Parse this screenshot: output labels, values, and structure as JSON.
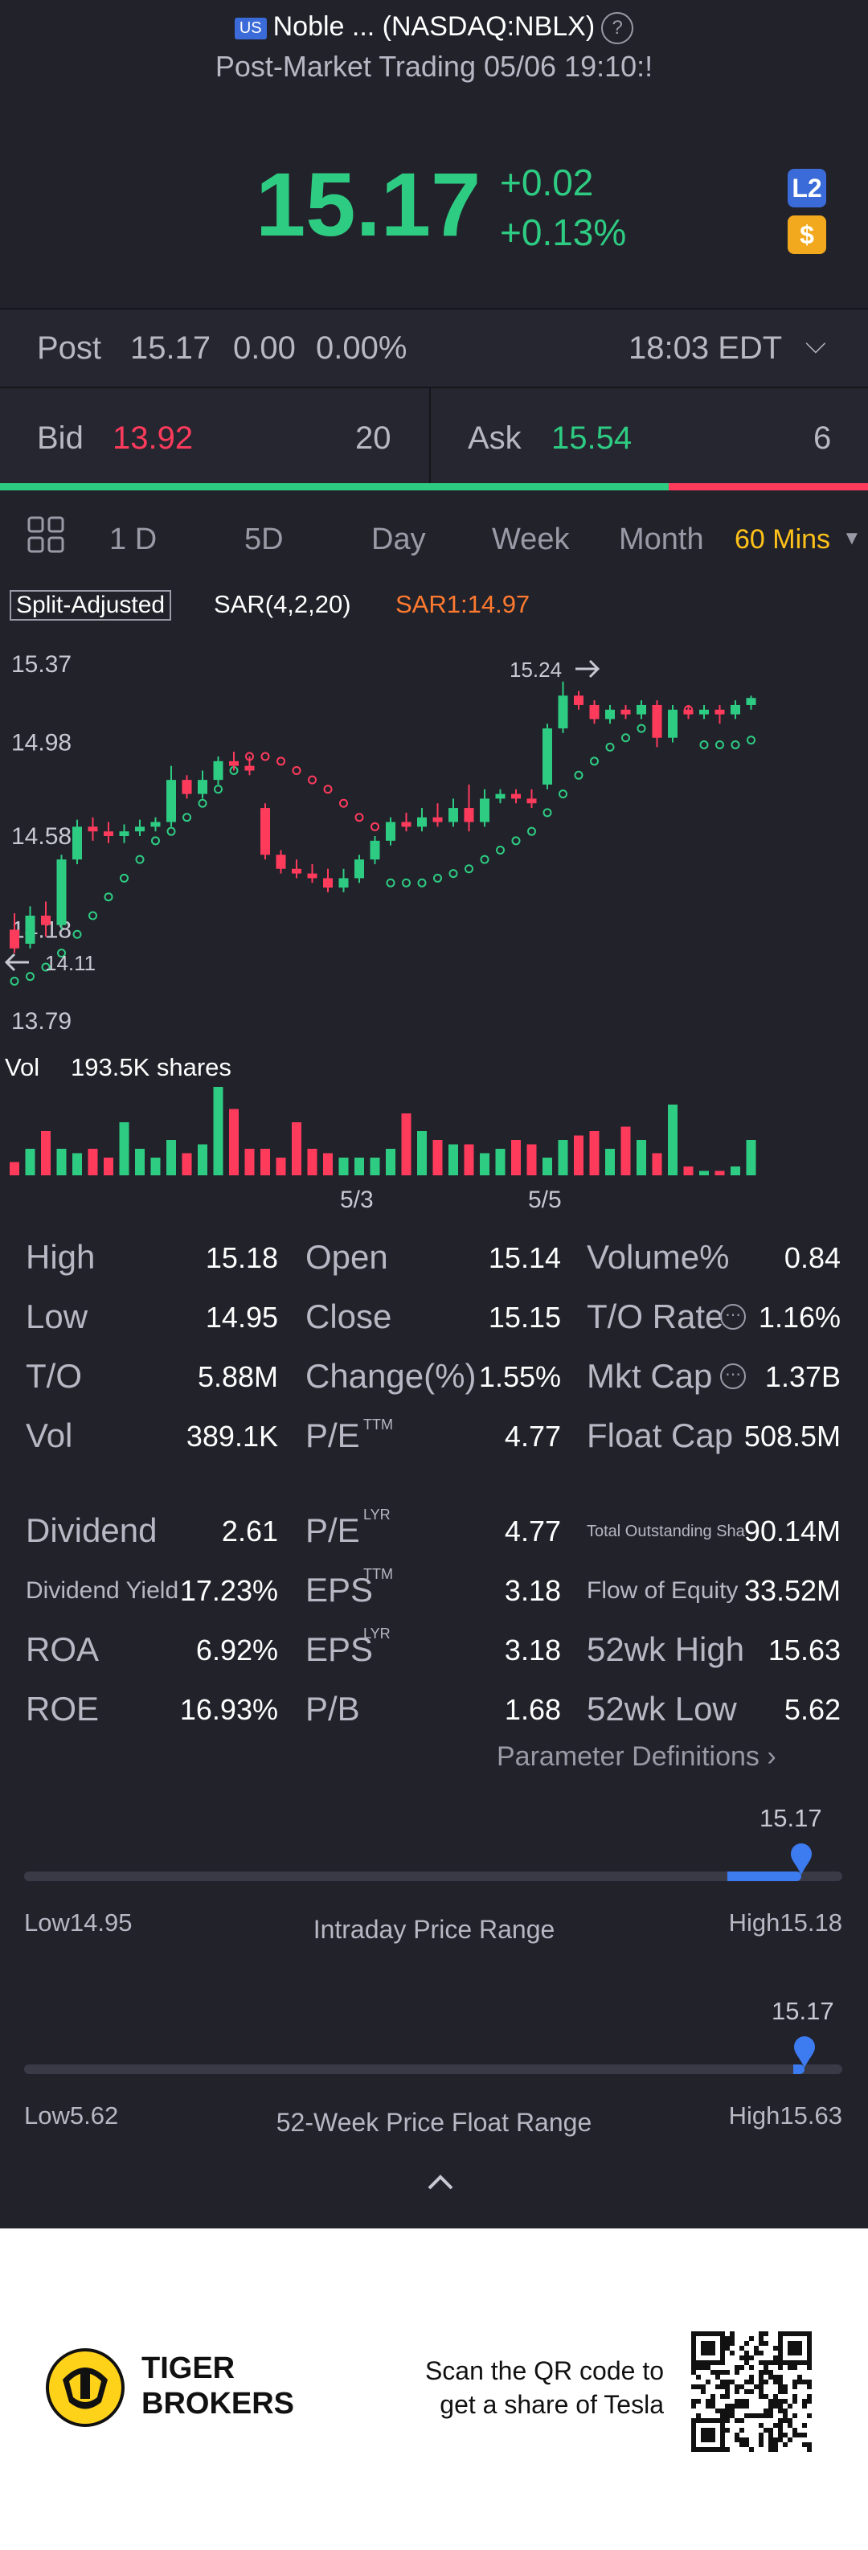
{
  "header": {
    "market_flag": "US",
    "title": "Noble ... (NASDAQ:NBLX)",
    "subtitle": "Post-Market Trading 05/06 19:10:!",
    "price": "15.17",
    "change": "+0.02",
    "change_pct": "+0.13%",
    "badge_l2": "L2",
    "badge_dollar": "$"
  },
  "post": {
    "label": "Post",
    "price": "15.17",
    "change": "0.00",
    "pct": "0.00%",
    "time": "18:03 EDT"
  },
  "bidask": {
    "bid_label": "Bid",
    "bid_price": "13.92",
    "bid_size": "20",
    "ask_label": "Ask",
    "ask_price": "15.54",
    "ask_size": "6",
    "bid_ratio": 0.77
  },
  "tabs": [
    "1 D",
    "5D",
    "Day",
    "Week",
    "Month",
    "60 Mins"
  ],
  "chart": {
    "split_label": "Split-Adjusted",
    "indicator": "SAR(4,2,20)",
    "sar_value": "SAR1:14.97",
    "y_labels": [
      "15.37",
      "14.98",
      "14.58",
      "14.18",
      "13.79"
    ],
    "high_marker": "15.24",
    "low_marker": "14.11",
    "vol_label": "Vol",
    "vol_value": "193.5K shares",
    "x_labels": [
      "5/3",
      "5/5"
    ]
  },
  "chart_data": {
    "type": "candlestick",
    "ylim": [
      13.79,
      15.37
    ],
    "candles": [
      [
        14.18,
        14.1,
        14.25,
        14.08
      ],
      [
        14.12,
        14.24,
        14.28,
        14.1
      ],
      [
        14.24,
        14.2,
        14.3,
        14.15
      ],
      [
        14.2,
        14.48,
        14.5,
        14.18
      ],
      [
        14.48,
        14.62,
        14.65,
        14.46
      ],
      [
        14.62,
        14.6,
        14.66,
        14.56
      ],
      [
        14.6,
        14.58,
        14.64,
        14.55
      ],
      [
        14.58,
        14.6,
        14.63,
        14.55
      ],
      [
        14.6,
        14.62,
        14.65,
        14.58
      ],
      [
        14.62,
        14.64,
        14.66,
        14.6
      ],
      [
        14.64,
        14.82,
        14.88,
        14.62
      ],
      [
        14.82,
        14.76,
        14.84,
        14.74
      ],
      [
        14.76,
        14.82,
        14.86,
        14.74
      ],
      [
        14.82,
        14.9,
        14.92,
        14.8
      ],
      [
        14.9,
        14.88,
        14.94,
        14.86
      ],
      [
        14.88,
        14.86,
        14.92,
        14.84
      ],
      [
        14.7,
        14.5,
        14.72,
        14.48
      ],
      [
        14.5,
        14.44,
        14.52,
        14.42
      ],
      [
        14.44,
        14.42,
        14.48,
        14.4
      ],
      [
        14.42,
        14.4,
        14.46,
        14.38
      ],
      [
        14.4,
        14.36,
        14.44,
        14.34
      ],
      [
        14.36,
        14.4,
        14.44,
        14.34
      ],
      [
        14.4,
        14.48,
        14.5,
        14.38
      ],
      [
        14.48,
        14.56,
        14.58,
        14.46
      ],
      [
        14.56,
        14.64,
        14.66,
        14.54
      ],
      [
        14.64,
        14.62,
        14.68,
        14.6
      ],
      [
        14.62,
        14.66,
        14.7,
        14.6
      ],
      [
        14.66,
        14.64,
        14.72,
        14.62
      ],
      [
        14.64,
        14.7,
        14.74,
        14.62
      ],
      [
        14.7,
        14.64,
        14.8,
        14.6
      ],
      [
        14.64,
        14.74,
        14.78,
        14.62
      ],
      [
        14.74,
        14.76,
        14.78,
        14.72
      ],
      [
        14.76,
        14.74,
        14.78,
        14.72
      ],
      [
        14.74,
        14.72,
        14.78,
        14.7
      ],
      [
        14.8,
        15.04,
        15.06,
        14.78
      ],
      [
        15.04,
        15.18,
        15.24,
        15.02
      ],
      [
        15.18,
        15.14,
        15.2,
        15.12
      ],
      [
        15.14,
        15.08,
        15.16,
        15.06
      ],
      [
        15.08,
        15.12,
        15.14,
        15.06
      ],
      [
        15.12,
        15.1,
        15.14,
        15.08
      ],
      [
        15.1,
        15.14,
        15.16,
        15.08
      ],
      [
        15.14,
        15.0,
        15.16,
        14.96
      ],
      [
        15.0,
        15.12,
        15.14,
        14.98
      ],
      [
        15.12,
        15.1,
        15.14,
        15.08
      ],
      [
        15.1,
        15.12,
        15.14,
        15.08
      ],
      [
        15.12,
        15.1,
        15.14,
        15.06
      ],
      [
        15.1,
        15.14,
        15.16,
        15.08
      ],
      [
        15.14,
        15.17,
        15.18,
        15.12
      ]
    ],
    "volumes": [
      0.15,
      0.3,
      0.5,
      0.3,
      0.25,
      0.3,
      0.2,
      0.6,
      0.3,
      0.2,
      0.4,
      0.25,
      0.35,
      1.0,
      0.75,
      0.3,
      0.3,
      0.2,
      0.6,
      0.3,
      0.25,
      0.2,
      0.2,
      0.2,
      0.3,
      0.7,
      0.5,
      0.4,
      0.35,
      0.35,
      0.25,
      0.3,
      0.4,
      0.35,
      0.2,
      0.4,
      0.45,
      0.5,
      0.3,
      0.55,
      0.4,
      0.25,
      0.8,
      0.1,
      0.05,
      0.05,
      0.1,
      0.4
    ],
    "sar": [
      13.96,
      13.98,
      14.02,
      14.08,
      14.16,
      14.24,
      14.32,
      14.4,
      14.48,
      14.56,
      14.6,
      14.66,
      14.72,
      14.78,
      14.86,
      14.92,
      14.92,
      14.9,
      14.86,
      14.82,
      14.78,
      14.72,
      14.66,
      14.62,
      14.38,
      14.38,
      14.38,
      14.4,
      14.42,
      14.44,
      14.48,
      14.52,
      14.56,
      14.6,
      14.68,
      14.76,
      14.84,
      14.9,
      14.96,
      15.0,
      15.04,
      15.08,
      15.1,
      15.12,
      14.97,
      14.97,
      14.97,
      14.99
    ]
  },
  "stats": {
    "rows1": [
      [
        "High",
        "15.18",
        "Open",
        "15.14",
        "Volume%",
        "0.84"
      ],
      [
        "Low",
        "14.95",
        "Close",
        "15.15",
        "T/O Rate",
        "1.16%"
      ],
      [
        "T/O",
        "5.88M",
        "Change(%)",
        "1.55%",
        "Mkt Cap",
        "1.37B"
      ],
      [
        "Vol",
        "389.1K",
        "P/E",
        "4.77",
        "Float Cap",
        "508.5M"
      ]
    ],
    "pe_sup": "TTM",
    "rows2": [
      [
        "Dividend",
        "2.61",
        "P/E",
        "4.77",
        "Total Outstanding Sha",
        "90.14M"
      ],
      [
        "Dividend Yield",
        "17.23%",
        "EPS",
        "3.18",
        "Flow of Equity",
        "33.52M"
      ],
      [
        "ROA",
        "6.92%",
        "EPS",
        "3.18",
        "52wk High",
        "15.63"
      ],
      [
        "ROE",
        "16.93%",
        "P/B",
        "1.68",
        "52wk Low",
        "5.62"
      ]
    ],
    "sups2": [
      "LYR",
      "TTM",
      "LYR"
    ],
    "param_link": "Parameter Definitions"
  },
  "ranges": {
    "intraday": {
      "current": "15.17",
      "low": "Low14.95",
      "high": "High15.18",
      "title": "Intraday Price Range",
      "fill_from": 0.86,
      "pos": 0.95
    },
    "week52": {
      "current": "15.17",
      "low": "Low5.62",
      "high": "High15.63",
      "title": "52-Week Price Float Range",
      "fill_from": 0.94,
      "pos": 0.954
    }
  },
  "footer": {
    "brand1": "TIGER",
    "brand2": "BROKERS",
    "line1": "Scan the QR code to",
    "line2": "get a share of Tesla"
  },
  "colors": {
    "up": "#2ecc82",
    "down": "#ff3b5c",
    "accent": "#ffc21a",
    "range": "#3c7bf0"
  }
}
